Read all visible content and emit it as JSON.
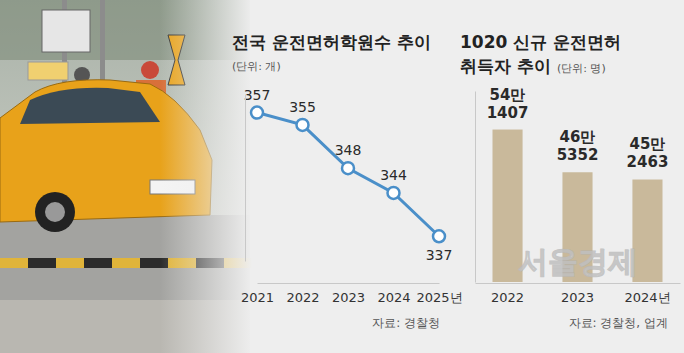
{
  "chart_data": [
    {
      "type": "line",
      "title": "전국 운전면허학원수 추이",
      "subtitle": "(단위: 개)",
      "source": "자료: 경찰청",
      "categories": [
        "2021",
        "2022",
        "2023",
        "2024",
        "2025년"
      ],
      "values": [
        357,
        355,
        348,
        344,
        337
      ],
      "color": "#4a8fc9",
      "marker": "circle",
      "ylim": [
        333,
        360
      ],
      "data_labels": true,
      "tick_labels": "x",
      "grid": false
    },
    {
      "type": "bar",
      "title": "1020 신규 운전면허 취득자 추이",
      "subtitle": "(단위: 명)",
      "source": "자료: 경찰청, 업계",
      "categories": [
        "2022",
        "2023",
        "2024년"
      ],
      "values": [
        541407,
        465352,
        452463
      ],
      "value_labels": [
        "54만 1407",
        "46만 5352",
        "45만 2463"
      ],
      "color": "#c9b99b",
      "ylim": [
        270000,
        610000
      ],
      "data_labels": true,
      "tick_labels": "x",
      "grid": false
    }
  ],
  "watermark": "서울경제"
}
